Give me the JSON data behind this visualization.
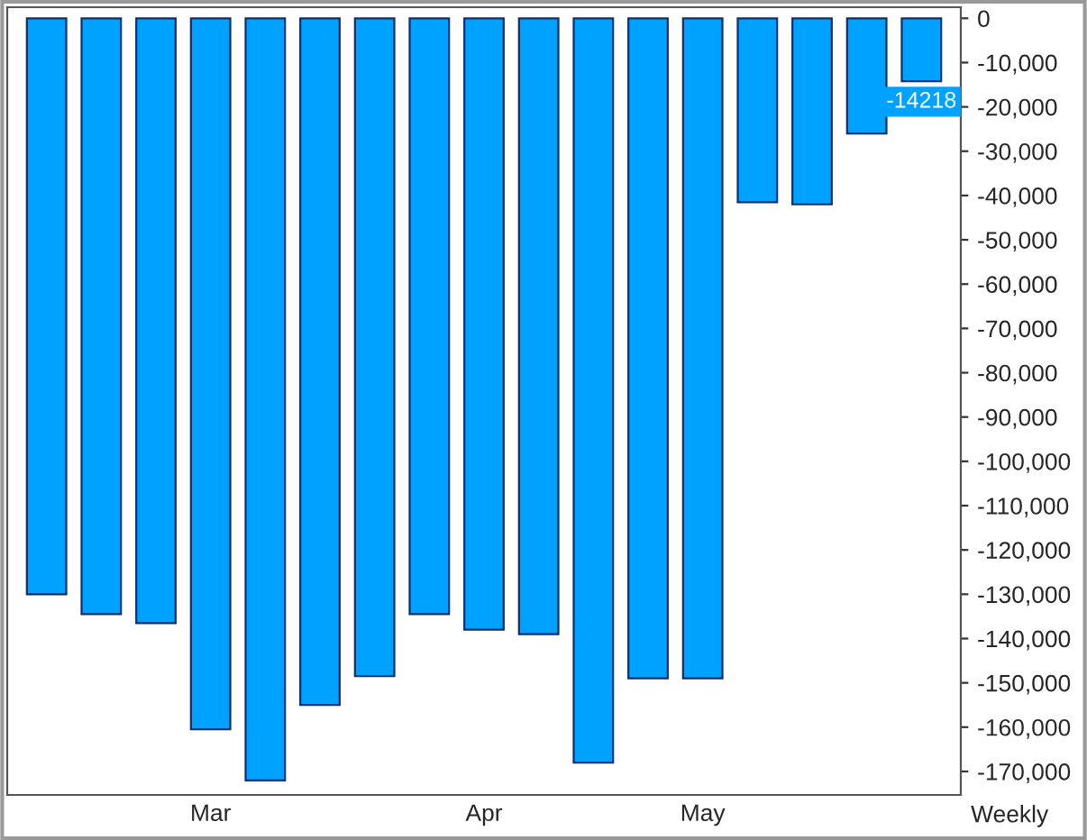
{
  "chart_data": {
    "type": "bar",
    "xlabel": "Weekly",
    "categories": [
      null,
      null,
      null,
      "Mar",
      null,
      null,
      null,
      null,
      "Apr",
      null,
      null,
      null,
      "May",
      null,
      null,
      null,
      null
    ],
    "series": [
      {
        "color": "#00a2ff",
        "values": [
          -130000,
          -134500,
          -136500,
          -160500,
          -172000,
          -155000,
          -148500,
          -134500,
          -138000,
          -139000,
          -168000,
          -149000,
          -149000,
          -41500,
          -42000,
          -26000,
          -14218
        ],
        "value_labels": [
          null,
          null,
          null,
          null,
          null,
          null,
          null,
          null,
          null,
          null,
          null,
          null,
          null,
          null,
          null,
          null,
          "-14218"
        ]
      }
    ],
    "ylim": [
      -175300,
      2500
    ],
    "yticks": [
      0,
      {
        "value": -10000,
        "label": "-10,000"
      },
      {
        "value": -20000,
        "label": "-20,000"
      },
      {
        "value": -30000,
        "label": "-30,000"
      },
      {
        "value": -40000,
        "label": "-40,000"
      },
      {
        "value": -50000,
        "label": "-50,000"
      },
      {
        "value": -60000,
        "label": "-60,000"
      },
      {
        "value": -70000,
        "label": "-70,000"
      },
      {
        "value": -80000,
        "label": "-80,000"
      },
      {
        "value": -90000,
        "label": "-90,000"
      },
      {
        "value": -100000,
        "label": "-100,000"
      },
      {
        "value": -110000,
        "label": "-110,000"
      },
      {
        "value": -120000,
        "label": "-120,000"
      },
      {
        "value": -130000,
        "label": "-130,000"
      },
      {
        "value": -140000,
        "label": "-140,000"
      },
      {
        "value": -150000,
        "label": "-150,000"
      },
      {
        "value": -160000,
        "label": "-160,000"
      },
      {
        "value": -170000,
        "label": "-170,000"
      }
    ],
    "grid": false,
    "legend": false
  }
}
